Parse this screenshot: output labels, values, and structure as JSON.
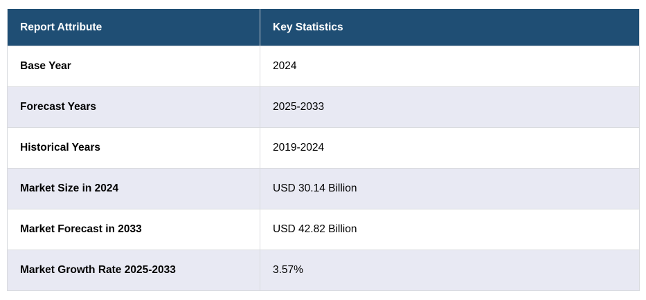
{
  "table": {
    "columns": [
      "Report Attribute",
      "Key Statistics"
    ],
    "rows": [
      {
        "attribute": "Base Year",
        "value": "2024"
      },
      {
        "attribute": "Forecast Years",
        "value": "2025-2033"
      },
      {
        "attribute": "Historical Years",
        "value": "2019-2024"
      },
      {
        "attribute": "Market Size in 2024",
        "value": "USD 30.14 Billion"
      },
      {
        "attribute": "Market Forecast in 2033",
        "value": "USD 42.82 Billion"
      },
      {
        "attribute": "Market Growth Rate 2025-2033",
        "value": "3.57%"
      }
    ],
    "colors": {
      "header_bg": "#1F4E74",
      "header_text": "#FFFFFF",
      "row_bg": "#FFFFFF",
      "row_alt_bg": "#E8E9F3",
      "border": "#D9DBDF",
      "text": "#000000"
    }
  }
}
